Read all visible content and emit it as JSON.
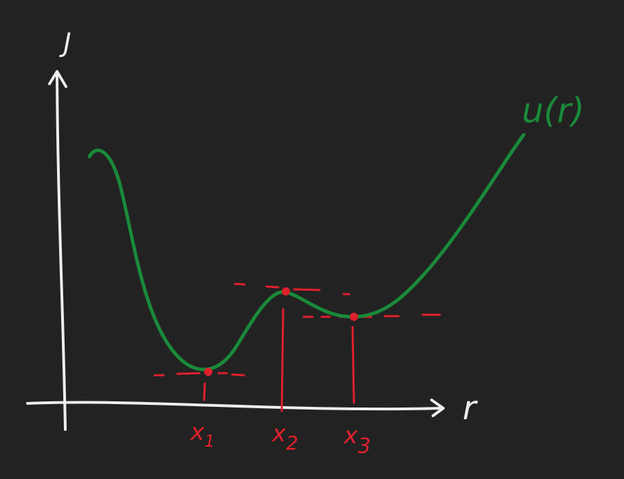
{
  "axes": {
    "y_label": "J",
    "x_label": "r"
  },
  "curve_label": "u(r)",
  "points": [
    {
      "letter": "x",
      "subscript": "1"
    },
    {
      "letter": "x",
      "subscript": "2"
    },
    {
      "letter": "x",
      "subscript": "3"
    }
  ]
}
